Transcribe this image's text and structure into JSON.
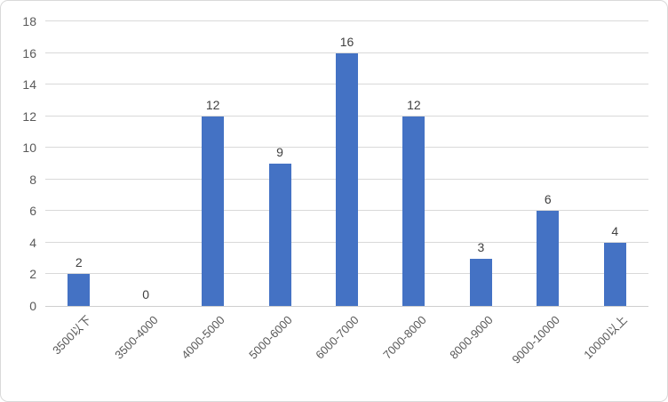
{
  "chart_data": {
    "type": "bar",
    "title": "",
    "xlabel": "",
    "ylabel": "",
    "categories": [
      "3500以下",
      "3500-4000",
      "4000-5000",
      "5000-6000",
      "6000-7000",
      "7000-8000",
      "8000-9000",
      "9000-10000",
      "10000以上"
    ],
    "values": [
      2,
      0,
      12,
      9,
      16,
      12,
      3,
      6,
      4
    ],
    "data_labels": [
      "2",
      "0",
      "12",
      "9",
      "16",
      "12",
      "3",
      "6",
      "4"
    ],
    "ylim": [
      0,
      18
    ],
    "yticks": [
      0,
      2,
      4,
      6,
      8,
      10,
      12,
      14,
      16,
      18
    ],
    "grid": true,
    "legend": false,
    "x_labels_rotation_deg": -45
  },
  "colors": {
    "bar": "#4472C4",
    "gridline": "#D9D9D9",
    "axis_line": "#CFCFCF",
    "y_tick_label": "#595959",
    "x_axis_label": "#595959",
    "data_label": "#404040",
    "frame_border": "#D9D9D9",
    "background": "#FFFFFF"
  }
}
